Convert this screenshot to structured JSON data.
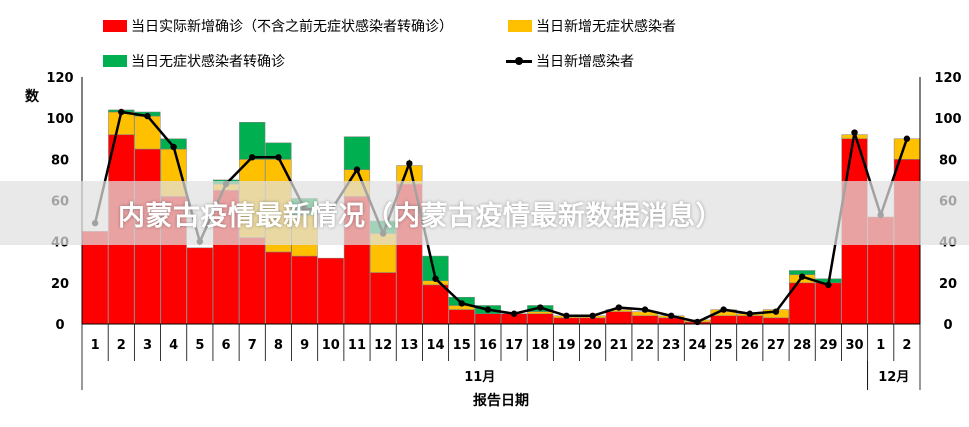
{
  "chart_data": {
    "type": "bar",
    "legend": {
      "placement": "top",
      "entries": [
        {
          "key": "confirmed",
          "label": "当日实际新增确诊（不含之前无症状感染者转确诊）",
          "color": "#ff0000"
        },
        {
          "key": "asymptomatic",
          "label": "当日新增无症状感染者",
          "color": "#ffc000"
        },
        {
          "key": "converted",
          "label": "当日无症状感染者转确诊",
          "color": "#00b050"
        },
        {
          "key": "total",
          "label": "当日新增感染者",
          "color": "#000000"
        }
      ]
    },
    "ylabel": "数",
    "xlabel": "报告日期",
    "ylim": [
      0,
      120
    ],
    "yticks": [
      0,
      20,
      40,
      60,
      80,
      100,
      120
    ],
    "grid": false,
    "categories": [
      "1",
      "2",
      "3",
      "4",
      "5",
      "6",
      "7",
      "8",
      "9",
      "10",
      "11",
      "12",
      "13",
      "14",
      "15",
      "16",
      "17",
      "18",
      "19",
      "20",
      "21",
      "22",
      "23",
      "24",
      "25",
      "26",
      "27",
      "28",
      "29",
      "30",
      "1",
      "2"
    ],
    "month_groups": [
      {
        "label": "11月",
        "start": 0,
        "end": 29
      },
      {
        "label": "12月",
        "start": 30,
        "end": 31
      }
    ],
    "series": [
      {
        "name": "当日实际新增确诊（不含之前无症状感染者转确诊）",
        "key": "confirmed",
        "type": "bar",
        "color": "#ff0000",
        "values": [
          45,
          92,
          85,
          62,
          37,
          65,
          42,
          35,
          33,
          32,
          62,
          25,
          68,
          19,
          7,
          5,
          5,
          5,
          3,
          3,
          6,
          4,
          3,
          1,
          4,
          4,
          3,
          20,
          20,
          90,
          52,
          80
        ]
      },
      {
        "name": "当日新增无症状感染者",
        "key": "asymptomatic",
        "type": "bar",
        "color": "#ffc000",
        "values": [
          0,
          11,
          16,
          23,
          0,
          3,
          38,
          45,
          20,
          0,
          13,
          19,
          9,
          2,
          2,
          0,
          0,
          1,
          1,
          1,
          1,
          2,
          1,
          1,
          3,
          1,
          4,
          4,
          0,
          2,
          0,
          10
        ]
      },
      {
        "name": "当日无症状感染者转确诊",
        "key": "converted",
        "type": "bar",
        "color": "#00b050",
        "values": [
          0,
          1,
          2,
          5,
          0,
          2,
          18,
          8,
          8,
          0,
          16,
          6,
          0,
          12,
          4,
          4,
          0,
          3,
          0,
          0,
          0,
          0,
          0,
          0,
          0,
          0,
          0,
          2,
          2,
          0,
          0,
          0
        ]
      },
      {
        "name": "当日新增感染者",
        "key": "total",
        "type": "line",
        "color": "#000000",
        "values": [
          49,
          103,
          101,
          86,
          40,
          68,
          81,
          81,
          56,
          55,
          75,
          44,
          78,
          22,
          10,
          7,
          5,
          8,
          4,
          4,
          8,
          7,
          4,
          1,
          7,
          5,
          6,
          23,
          19,
          93,
          53,
          90
        ]
      }
    ]
  },
  "banner": {
    "title": "内蒙古疫情最新情况（内蒙古疫情最新数据消息）"
  }
}
